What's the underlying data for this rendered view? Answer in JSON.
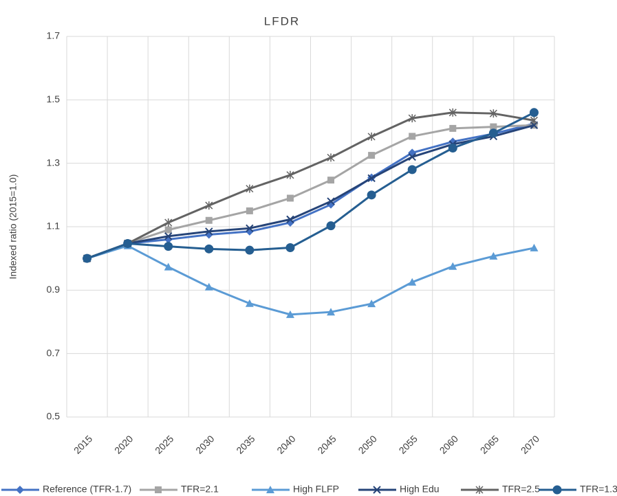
{
  "chart_data": {
    "type": "line",
    "title": "LFDR",
    "y_label": "Indexed ratio (2015=1.0)",
    "categories": [
      "2015",
      "2020",
      "2025",
      "2030",
      "2035",
      "2040",
      "2045",
      "2050",
      "2055",
      "2060",
      "2065",
      "2070"
    ],
    "ylim": [
      0.5,
      1.7
    ],
    "yticks": [
      0.5,
      0.7,
      0.9,
      1.1,
      1.3,
      1.5,
      1.7
    ],
    "grid": true,
    "legend": "bottom",
    "series": [
      {
        "name": "Reference (TFR-1.7)",
        "color": "#4472c4",
        "marker": "diamond",
        "values": [
          1.0,
          1.047,
          1.06,
          1.075,
          1.085,
          1.113,
          1.17,
          1.255,
          1.333,
          1.368,
          1.393,
          1.425
        ]
      },
      {
        "name": "TFR=2.1",
        "color": "#a5a5a5",
        "marker": "square",
        "values": [
          1.0,
          1.047,
          1.09,
          1.12,
          1.15,
          1.19,
          1.247,
          1.325,
          1.385,
          1.41,
          1.415,
          1.42
        ]
      },
      {
        "name": "High FLFP",
        "color": "#5b9bd5",
        "marker": "triangle",
        "values": [
          1.0,
          1.04,
          0.973,
          0.91,
          0.858,
          0.823,
          0.831,
          0.857,
          0.925,
          0.975,
          1.007,
          1.033
        ]
      },
      {
        "name": "High Edu",
        "color": "#264478",
        "marker": "x",
        "values": [
          1.0,
          1.047,
          1.07,
          1.085,
          1.095,
          1.123,
          1.18,
          1.253,
          1.32,
          1.36,
          1.385,
          1.42
        ]
      },
      {
        "name": "TFR=2.5",
        "color": "#636363",
        "marker": "star",
        "values": [
          1.0,
          1.047,
          1.113,
          1.167,
          1.22,
          1.263,
          1.318,
          1.384,
          1.442,
          1.46,
          1.457,
          1.435
        ]
      },
      {
        "name": "TFR=1.3",
        "color": "#255e91",
        "marker": "circle",
        "values": [
          1.0,
          1.047,
          1.038,
          1.03,
          1.026,
          1.034,
          1.103,
          1.2,
          1.28,
          1.348,
          1.395,
          1.46
        ]
      }
    ]
  }
}
